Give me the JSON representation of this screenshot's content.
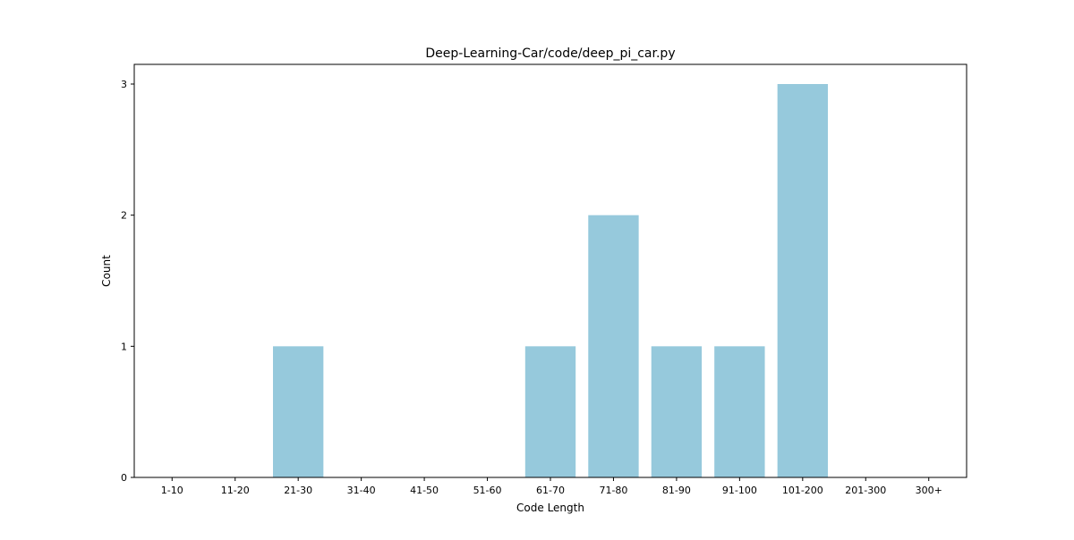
{
  "chart_data": {
    "type": "bar",
    "title": "Deep-Learning-Car/code/deep_pi_car.py",
    "xlabel": "Code Length",
    "ylabel": "Count",
    "categories": [
      "1-10",
      "11-20",
      "21-30",
      "31-40",
      "41-50",
      "51-60",
      "61-70",
      "71-80",
      "81-90",
      "91-100",
      "101-200",
      "201-300",
      "300+"
    ],
    "values": [
      0,
      0,
      1,
      0,
      0,
      0,
      1,
      2,
      1,
      1,
      3,
      0,
      0
    ],
    "ylim": [
      0,
      3.15
    ],
    "yticks": [
      0,
      1,
      2,
      3
    ],
    "grid": false,
    "bar_color": "#96c9dc"
  }
}
